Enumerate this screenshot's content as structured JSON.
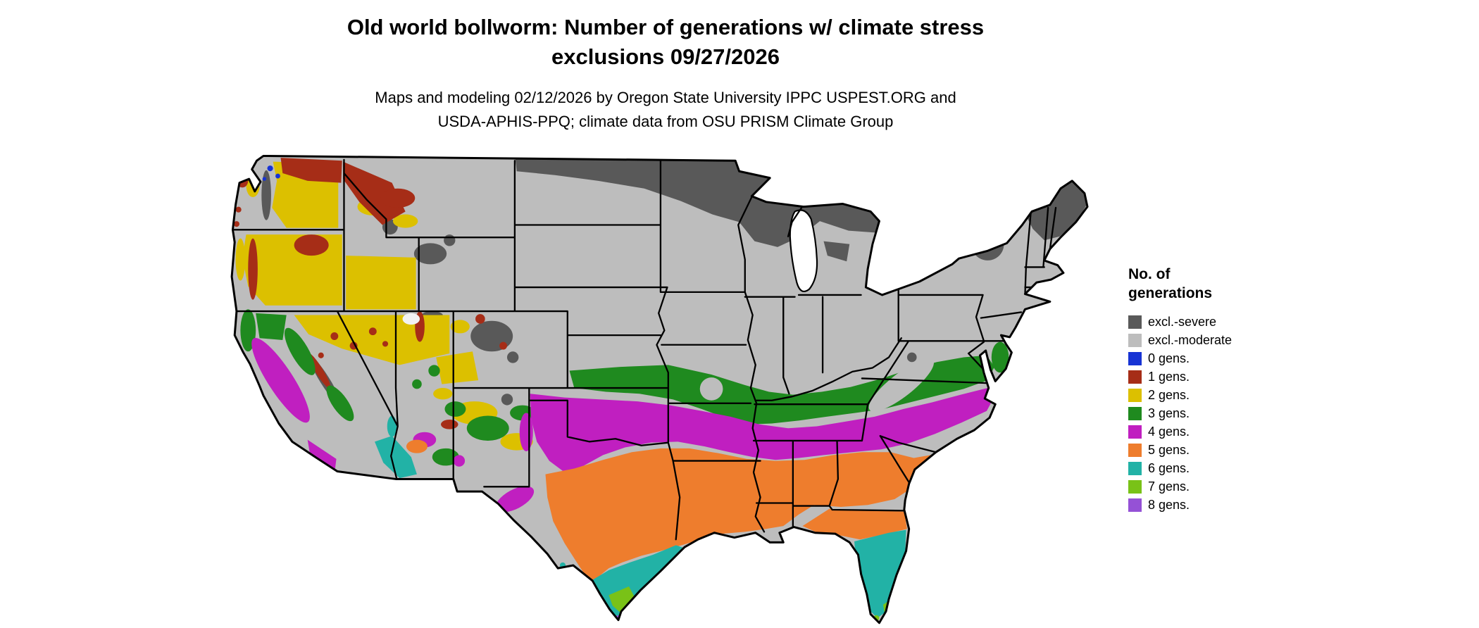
{
  "title": {
    "line1": "Old world bollworm: Number of generations w/ climate stress",
    "line2": "exclusions 09/27/2026"
  },
  "subtitle": {
    "line1": "Maps and modeling 02/12/2026 by Oregon State University IPPC USPEST.ORG and",
    "line2": "USDA-APHIS-PPQ; climate data from OSU PRISM Climate Group"
  },
  "legend": {
    "title_line1": "No. of",
    "title_line2": "generations",
    "items": [
      {
        "key": "severe",
        "label": "excl.-severe",
        "color": "#595959"
      },
      {
        "key": "moderate",
        "label": "excl.-moderate",
        "color": "#bdbdbd"
      },
      {
        "key": "g0",
        "label": "0 gens.",
        "color": "#1733d4"
      },
      {
        "key": "g1",
        "label": "1 gens.",
        "color": "#a62d17"
      },
      {
        "key": "g2",
        "label": "2 gens.",
        "color": "#dcc000"
      },
      {
        "key": "g3",
        "label": "3 gens.",
        "color": "#1f8a1f"
      },
      {
        "key": "g4",
        "label": "4 gens.",
        "color": "#c01fc0"
      },
      {
        "key": "g5",
        "label": "5 gens.",
        "color": "#ee7d2d"
      },
      {
        "key": "g6",
        "label": "6 gens.",
        "color": "#22b2a6"
      },
      {
        "key": "g7",
        "label": "7 gens.",
        "color": "#79c217"
      },
      {
        "key": "g8",
        "label": "8 gens.",
        "color": "#9551d6"
      }
    ]
  },
  "map": {
    "outline_color": "#000000",
    "water_color": "#ffffff",
    "region_summary": {
      "excl_severe": "northern MN/WI/upper MI, Adirondacks, northern New England, high Rockies",
      "excl_moderate": "most northern and central states, Appalachians",
      "2_gens": "inland Pacific Northwest, Great Basin",
      "1_gens": "northern Rockies and Cascades",
      "3_gens": "band from Kansas through Kentucky to Virginia; western mountains",
      "4_gens": "Oklahoma/Arkansas/Tennessee through Carolinas; California Central Valley",
      "5_gens": "central Texas and Gulf states to Georgia and north Florida",
      "6_gens": "south Texas, Florida peninsula, lower Colorado River",
      "7_gens": "southern tip of Texas and south Florida",
      "8_gens": "extreme south Florida and Texas tips"
    }
  }
}
